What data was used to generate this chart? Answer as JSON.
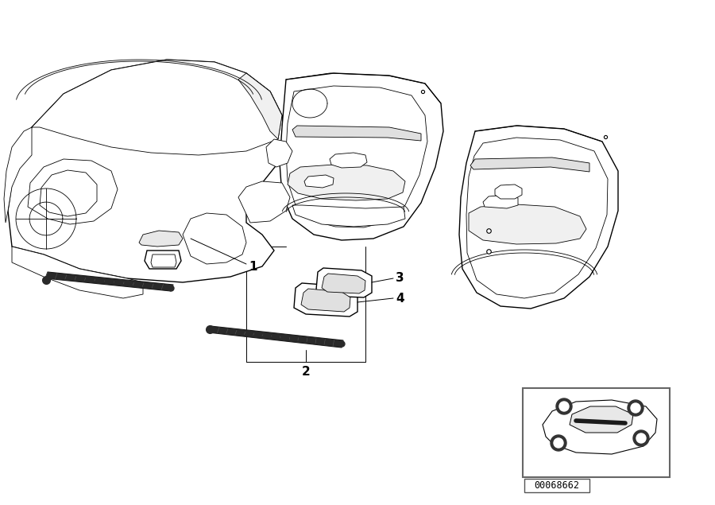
{
  "background_color": "#ffffff",
  "line_color": "#000000",
  "ref_number": "00068662",
  "figsize": [
    9.0,
    6.35
  ],
  "dpi": 100,
  "lw_main": 1.0,
  "lw_thin": 0.6,
  "lw_thick": 1.5
}
